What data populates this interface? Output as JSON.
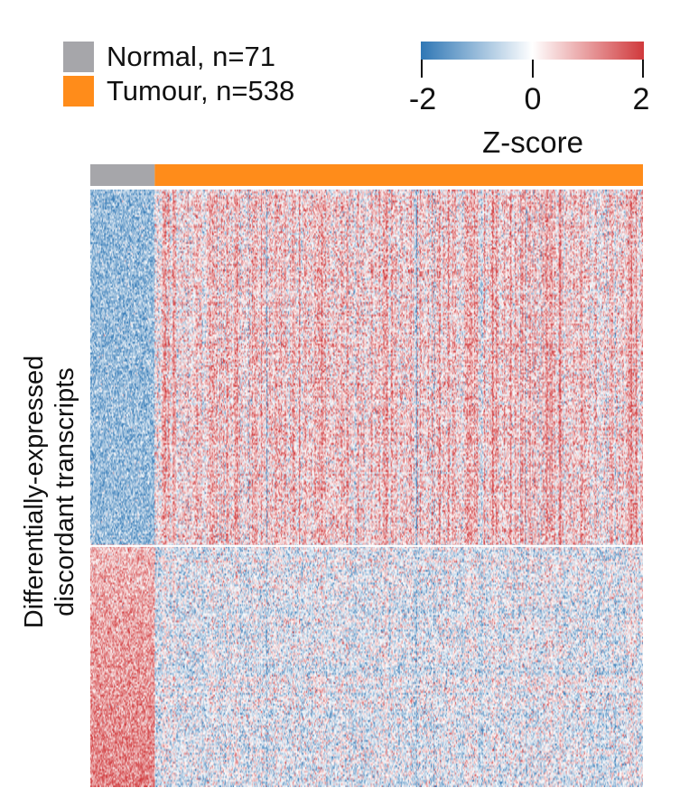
{
  "chart_data": {
    "type": "heatmap",
    "title": "",
    "ylabel": [
      "Differentially-expressed",
      "discordant transcripts"
    ],
    "xlabel": "",
    "groups": [
      {
        "name": "Normal, n=71",
        "count": 71,
        "color": "#a6a6aa"
      },
      {
        "name": "Tumour, n=538",
        "count": 538,
        "color": "#ff8c1a"
      }
    ],
    "row_clusters": [
      {
        "id": "upper",
        "normal_mean_z": -1.0,
        "tumour_mean_z": 0.45,
        "row_fraction": 0.595
      },
      {
        "id": "lower",
        "normal_mean_z": 1.0,
        "tumour_mean_z": -0.2,
        "row_fraction": 0.405
      }
    ],
    "colorbar": {
      "title": "Z-score",
      "range": [
        -2,
        2
      ],
      "ticks": [
        -2,
        0,
        2
      ],
      "tick_labels": [
        "-2",
        "0",
        "2"
      ],
      "colors": {
        "low": "#2f77b5",
        "mid": "#ffffff",
        "high": "#d0393c"
      }
    },
    "legend_placement": "top-left"
  }
}
